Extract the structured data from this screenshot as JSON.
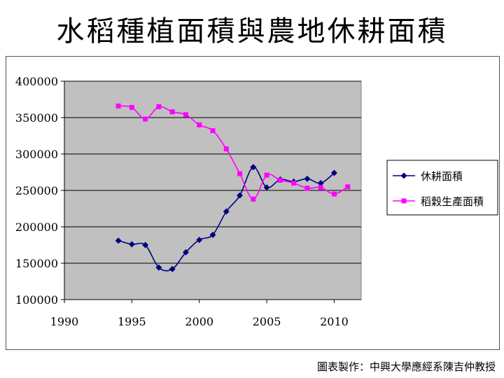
{
  "slide": {
    "title": "水稻種植面積與農地休耕面積",
    "credit": "圖表製作：中興大學應經系陳吉仲教授"
  },
  "chart_data": {
    "type": "line",
    "title": "",
    "xlabel": "",
    "ylabel": "",
    "xlim": [
      1990,
      2012
    ],
    "ylim": [
      100000,
      400000
    ],
    "x_ticks": [
      1990,
      1995,
      2000,
      2005,
      2010
    ],
    "y_ticks": [
      100000,
      150000,
      200000,
      250000,
      300000,
      350000,
      400000
    ],
    "grid": "horizontal",
    "plot_background": "#c0c0c0",
    "legend_position": "right",
    "series": [
      {
        "name": "休耕面積",
        "color": "#000080",
        "marker": "diamond",
        "x": [
          1994,
          1995,
          1996,
          1997,
          1998,
          1999,
          2000,
          2001,
          2002,
          2003,
          2004,
          2005,
          2006,
          2007,
          2008,
          2009,
          2010
        ],
        "values": [
          181000,
          176000,
          175000,
          144000,
          142000,
          165000,
          182000,
          189000,
          221000,
          243000,
          282000,
          254000,
          265000,
          262000,
          266000,
          260000,
          274000
        ]
      },
      {
        "name": "稻穀生產面積",
        "color": "#ff00ff",
        "marker": "square",
        "x": [
          1994,
          1995,
          1996,
          1997,
          1998,
          1999,
          2000,
          2001,
          2002,
          2003,
          2004,
          2005,
          2006,
          2007,
          2008,
          2009,
          2010,
          2011
        ],
        "values": [
          366000,
          364000,
          348000,
          365000,
          358000,
          354000,
          340000,
          332000,
          307000,
          273000,
          238000,
          271000,
          264000,
          260000,
          253000,
          254000,
          245000,
          255000
        ]
      }
    ]
  }
}
